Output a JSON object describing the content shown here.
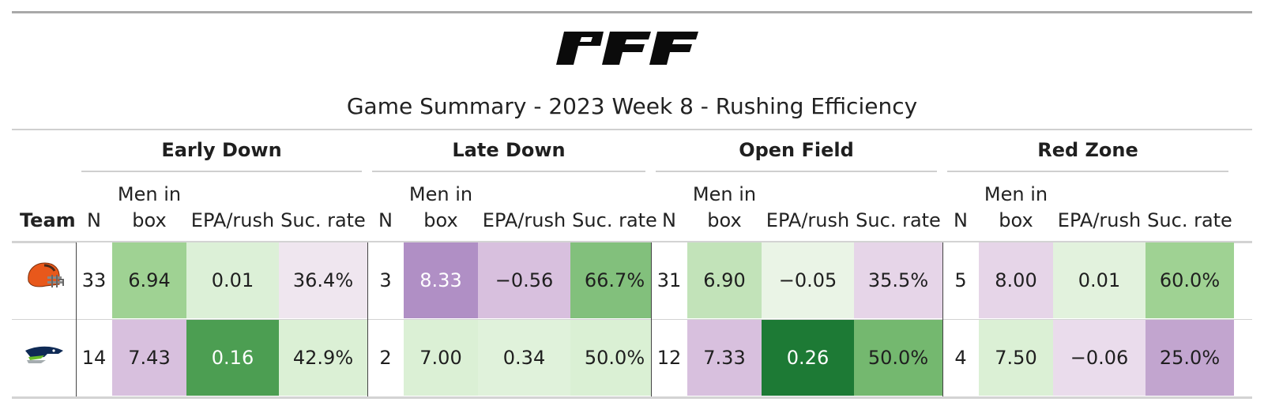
{
  "title": "Game Summary - 2023 Week 8 - Rushing Efficiency",
  "logo_text": "PFF",
  "team_header": "Team",
  "groups": [
    "Early Down",
    "Late Down",
    "Open Field",
    "Red Zone"
  ],
  "columns": {
    "n": "N",
    "men_in_box": "Men in box",
    "epa": "EPA/rush",
    "suc": "Suc. rate"
  },
  "teams": [
    {
      "icon": "browns-helmet-icon",
      "cells": [
        "33",
        "6.94",
        "0.01",
        "36.4%",
        "3",
        "8.33",
        "−0.56",
        "66.7%",
        "31",
        "6.90",
        "−0.05",
        "35.5%",
        "5",
        "8.00",
        "0.01",
        "60.0%"
      ],
      "colors": [
        "#ffffff",
        "#9fd293",
        "#dcf0d7",
        "#efe6ef",
        "#ffffff",
        "#b08fc5",
        "#d8c0de",
        "#82c07c",
        "#ffffff",
        "#c2e3b9",
        "#eaf4e6",
        "#e6d5e8",
        "#ffffff",
        "#e6d5e8",
        "#e2f2dd",
        "#9fd293"
      ],
      "light_text": [
        false,
        false,
        false,
        false,
        false,
        true,
        false,
        false,
        false,
        false,
        false,
        false,
        false,
        false,
        false,
        false
      ]
    },
    {
      "icon": "seahawks-logo-icon",
      "cells": [
        "14",
        "7.43",
        "0.16",
        "42.9%",
        "2",
        "7.00",
        "0.34",
        "50.0%",
        "12",
        "7.33",
        "0.26",
        "50.0%",
        "4",
        "7.50",
        "−0.06",
        "25.0%"
      ],
      "colors": [
        "#ffffff",
        "#d8c0de",
        "#4c9e52",
        "#dbf0d5",
        "#ffffff",
        "#dbf0d5",
        "#e0f2db",
        "#daf0d4",
        "#ffffff",
        "#d8c0de",
        "#1d7a35",
        "#74b86f",
        "#ffffff",
        "#dbf0d5",
        "#eadcec",
        "#c2a5cf"
      ],
      "light_text": [
        false,
        false,
        true,
        false,
        false,
        false,
        false,
        false,
        false,
        false,
        true,
        false,
        false,
        false,
        false,
        false
      ]
    }
  ]
}
